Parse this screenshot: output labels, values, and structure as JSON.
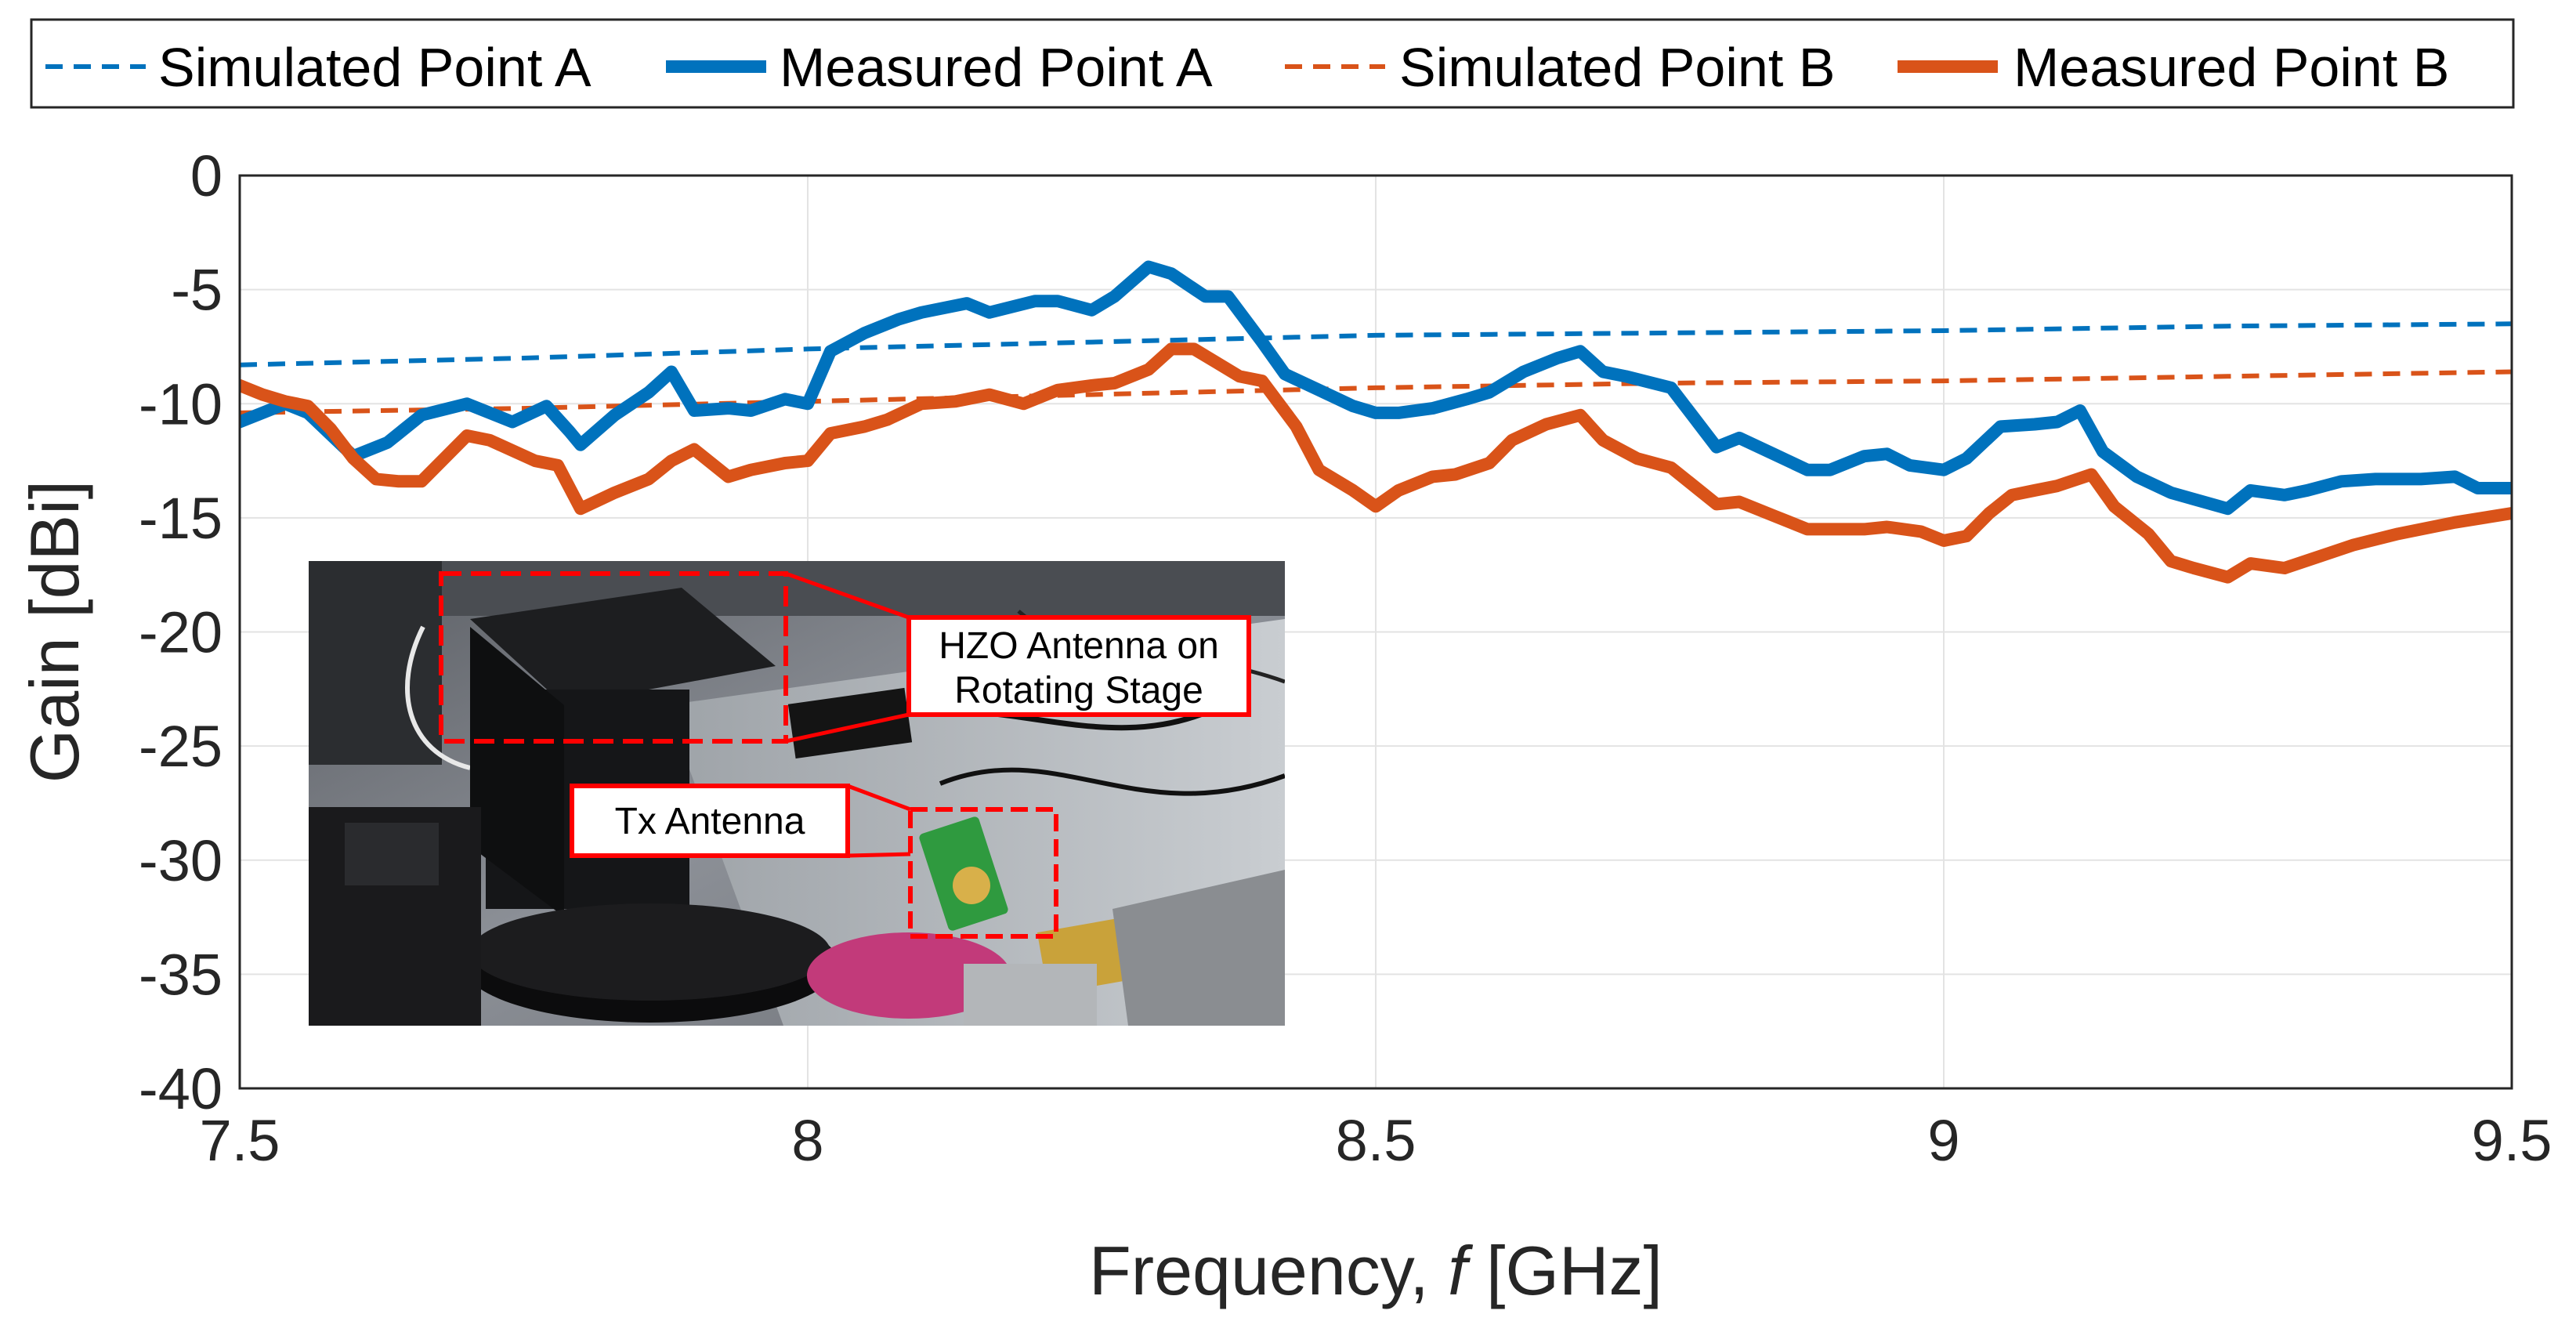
{
  "chart_data": {
    "type": "line",
    "xlabel_main": "Frequency, ",
    "xlabel_var": "f",
    "xlabel_unit": " [GHz]",
    "ylabel": "Gain [dBi]",
    "xlim": [
      7.5,
      9.5
    ],
    "ylim": [
      -40,
      0
    ],
    "xticks": [
      7.5,
      8,
      8.5,
      9,
      9.5
    ],
    "xtick_labels": [
      "7.5",
      "8",
      "8.5",
      "9",
      "9.5"
    ],
    "yticks": [
      0,
      -5,
      -10,
      -15,
      -20,
      -25,
      -30,
      -35,
      -40
    ],
    "ytick_labels": [
      "0",
      "-5",
      "-10",
      "-15",
      "-20",
      "-25",
      "-30",
      "-35",
      "-40"
    ],
    "grid": true,
    "legend_position": "top",
    "colors": {
      "a": "#0072BD",
      "b": "#D95319",
      "callout": "#FF0000"
    },
    "series": [
      {
        "name": "Simulated Point A",
        "style": "dashed",
        "color": "#0072BD",
        "x": [
          7.5,
          7.75,
          8.0,
          8.25,
          8.5,
          8.75,
          9.0,
          9.25,
          9.5
        ],
        "y": [
          -8.3,
          -8.0,
          -7.6,
          -7.3,
          -7.0,
          -6.9,
          -6.8,
          -6.6,
          -6.5
        ]
      },
      {
        "name": "Measured Point A",
        "style": "solid",
        "color": "#0072BD",
        "x": [
          7.5,
          7.52,
          7.54,
          7.56,
          7.6,
          7.63,
          7.66,
          7.7,
          7.74,
          7.77,
          7.79,
          7.8,
          7.83,
          7.86,
          7.88,
          7.9,
          7.93,
          7.95,
          7.98,
          8.0,
          8.02,
          8.05,
          8.08,
          8.1,
          8.14,
          8.16,
          8.2,
          8.22,
          8.25,
          8.27,
          8.3,
          8.32,
          8.35,
          8.37,
          8.4,
          8.42,
          8.45,
          8.48,
          8.5,
          8.52,
          8.55,
          8.58,
          8.6,
          8.63,
          8.66,
          8.68,
          8.7,
          8.72,
          8.76,
          8.8,
          8.82,
          8.85,
          8.88,
          8.9,
          8.93,
          8.95,
          8.97,
          9.0,
          9.02,
          9.05,
          9.08,
          9.1,
          9.12,
          9.14,
          9.17,
          9.2,
          9.25,
          9.27,
          9.3,
          9.32,
          9.35,
          9.38,
          9.42,
          9.45,
          9.47,
          9.5
        ],
        "y": [
          -10.8,
          -10.4,
          -10.0,
          -10.4,
          -12.3,
          -11.7,
          -10.5,
          -10.0,
          -10.8,
          -10.1,
          -11.2,
          -11.8,
          -10.5,
          -9.5,
          -8.6,
          -10.3,
          -10.2,
          -10.3,
          -9.8,
          -10.0,
          -7.7,
          -6.9,
          -6.3,
          -6.0,
          -5.6,
          -6.0,
          -5.5,
          -5.5,
          -5.9,
          -5.3,
          -4.0,
          -4.3,
          -5.3,
          -5.3,
          -7.3,
          -8.7,
          -9.4,
          -10.1,
          -10.4,
          -10.4,
          -10.2,
          -9.8,
          -9.5,
          -8.6,
          -8.0,
          -7.7,
          -8.6,
          -8.8,
          -9.3,
          -11.9,
          -11.5,
          -12.2,
          -12.9,
          -12.9,
          -12.3,
          -12.2,
          -12.7,
          -12.9,
          -12.4,
          -11.0,
          -10.9,
          -10.8,
          -10.3,
          -12.1,
          -13.2,
          -13.9,
          -14.6,
          -13.8,
          -14.0,
          -13.8,
          -13.4,
          -13.3,
          -13.3,
          -13.2,
          -13.7,
          -13.7
        ]
      },
      {
        "name": "Simulated Point B",
        "style": "dashed",
        "color": "#D95319",
        "x": [
          7.5,
          7.75,
          8.0,
          8.25,
          8.5,
          8.75,
          9.0,
          9.25,
          9.5
        ],
        "y": [
          -10.4,
          -10.2,
          -9.9,
          -9.6,
          -9.3,
          -9.1,
          -9.0,
          -8.8,
          -8.6
        ]
      },
      {
        "name": "Measured Point B",
        "style": "solid",
        "color": "#D95319",
        "x": [
          7.5,
          7.52,
          7.54,
          7.56,
          7.58,
          7.6,
          7.62,
          7.64,
          7.66,
          7.7,
          7.72,
          7.76,
          7.78,
          7.8,
          7.83,
          7.86,
          7.88,
          7.9,
          7.93,
          7.95,
          7.98,
          8.0,
          8.02,
          8.05,
          8.07,
          8.1,
          8.13,
          8.16,
          8.19,
          8.22,
          8.25,
          8.27,
          8.3,
          8.32,
          8.34,
          8.36,
          8.38,
          8.4,
          8.43,
          8.45,
          8.48,
          8.5,
          8.52,
          8.55,
          8.57,
          8.6,
          8.62,
          8.65,
          8.68,
          8.7,
          8.73,
          8.76,
          8.8,
          8.82,
          8.85,
          8.88,
          8.9,
          8.93,
          8.95,
          8.98,
          9.0,
          9.02,
          9.04,
          9.06,
          9.08,
          9.1,
          9.13,
          9.15,
          9.18,
          9.2,
          9.22,
          9.25,
          9.27,
          9.3,
          9.33,
          9.36,
          9.4,
          9.45,
          9.5
        ],
        "y": [
          -9.2,
          -9.6,
          -9.9,
          -10.1,
          -11.1,
          -12.4,
          -13.3,
          -13.4,
          -13.4,
          -11.4,
          -11.6,
          -12.5,
          -12.7,
          -14.6,
          -13.9,
          -13.3,
          -12.5,
          -12.0,
          -13.2,
          -12.9,
          -12.6,
          -12.5,
          -11.3,
          -11.0,
          -10.7,
          -10.0,
          -9.9,
          -9.6,
          -10.0,
          -9.4,
          -9.2,
          -9.1,
          -8.5,
          -7.6,
          -7.6,
          -8.2,
          -8.8,
          -9.0,
          -11.0,
          -12.9,
          -13.8,
          -14.5,
          -13.8,
          -13.2,
          -13.1,
          -12.6,
          -11.6,
          -10.9,
          -10.5,
          -11.6,
          -12.4,
          -12.8,
          -14.4,
          -14.3,
          -14.9,
          -15.5,
          -15.5,
          -15.5,
          -15.4,
          -15.6,
          -16.0,
          -15.8,
          -14.8,
          -14.0,
          -13.8,
          -13.6,
          -13.1,
          -14.5,
          -15.7,
          -16.9,
          -17.2,
          -17.6,
          -17.0,
          -17.2,
          -16.7,
          -16.2,
          -15.7,
          -15.2,
          -14.8
        ]
      }
    ],
    "inset": {
      "callout_stage": "HZO Antenna on\nRotating Stage",
      "callout_stage_line1": "HZO Antenna on",
      "callout_stage_line2": "Rotating Stage",
      "callout_tx": "Tx Antenna"
    }
  }
}
